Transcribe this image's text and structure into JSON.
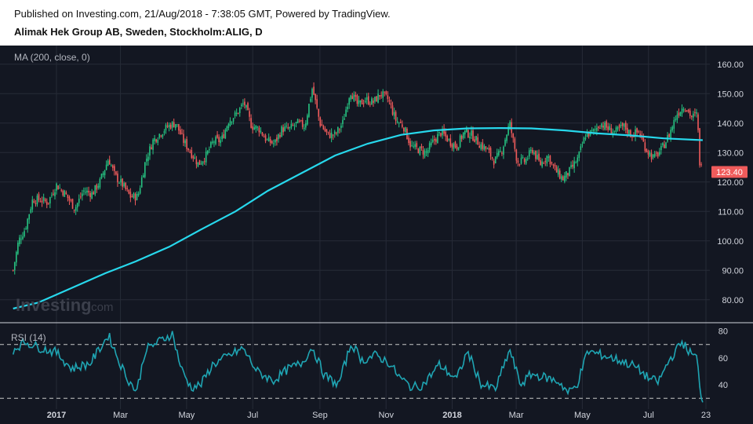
{
  "header": {
    "published": "Published on Investing.com, 21/Aug/2018 - 7:38:05 GMT, Powered by TradingView.",
    "symbol": "Alimak Hek Group AB, Sweden, Stockholm:ALIG, D"
  },
  "watermark": {
    "main": "Investing",
    "suffix": ".com"
  },
  "colors": {
    "background": "#131722",
    "up": "#26c281",
    "down": "#ef5b5b",
    "ma": "#27d8ec",
    "rsi": "#1fa5b3",
    "last_price_label": "#ef5b5b"
  },
  "chart_data": [
    {
      "type": "candlestick",
      "indicator_label": "MA (200, close, 0)",
      "ylim": [
        73,
        165
      ],
      "yticks": [
        "160.00",
        "150.00",
        "140.00",
        "130.00",
        "120.00",
        "110.00",
        "100.00",
        "90.00",
        "80.00"
      ],
      "last_price": 123.4,
      "last_price_label": "123.40",
      "close_path": [
        [
          "2016-11-22",
          90
        ],
        [
          "2016-11-27",
          100
        ],
        [
          "2016-12-03",
          104
        ],
        [
          "2016-12-10",
          114
        ],
        [
          "2016-12-17",
          114
        ],
        [
          "2016-12-24",
          113
        ],
        [
          "2017-01-01",
          119
        ],
        [
          "2017-01-09",
          116
        ],
        [
          "2017-01-18",
          111
        ],
        [
          "2017-01-26",
          117
        ],
        [
          "2017-02-03",
          116
        ],
        [
          "2017-02-10",
          120
        ],
        [
          "2017-02-18",
          128
        ],
        [
          "2017-02-24",
          122
        ],
        [
          "2017-03-03",
          119
        ],
        [
          "2017-03-10",
          115
        ],
        [
          "2017-03-17",
          115
        ],
        [
          "2017-03-24",
          127
        ],
        [
          "2017-03-31",
          134
        ],
        [
          "2017-04-08",
          137
        ],
        [
          "2017-04-14",
          139
        ],
        [
          "2017-04-21",
          140
        ],
        [
          "2017-04-28",
          134
        ],
        [
          "2017-05-05",
          130
        ],
        [
          "2017-05-12",
          126
        ],
        [
          "2017-05-19",
          129
        ],
        [
          "2017-05-26",
          134
        ],
        [
          "2017-06-02",
          134
        ],
        [
          "2017-06-09",
          141
        ],
        [
          "2017-06-16",
          143
        ],
        [
          "2017-06-23",
          147
        ],
        [
          "2017-06-30",
          139
        ],
        [
          "2017-07-07",
          138
        ],
        [
          "2017-07-14",
          134
        ],
        [
          "2017-07-21",
          133
        ],
        [
          "2017-07-28",
          138
        ],
        [
          "2017-08-04",
          138
        ],
        [
          "2017-08-11",
          140
        ],
        [
          "2017-08-18",
          139
        ],
        [
          "2017-08-25",
          152
        ],
        [
          "2017-09-01",
          140
        ],
        [
          "2017-09-08",
          136
        ],
        [
          "2017-09-15",
          136
        ],
        [
          "2017-09-22",
          140
        ],
        [
          "2017-09-29",
          151
        ],
        [
          "2017-10-06",
          146
        ],
        [
          "2017-10-13",
          148
        ],
        [
          "2017-10-20",
          147
        ],
        [
          "2017-10-27",
          150
        ],
        [
          "2017-11-03",
          148
        ],
        [
          "2017-11-10",
          141
        ],
        [
          "2017-11-17",
          139
        ],
        [
          "2017-11-24",
          132
        ],
        [
          "2017-12-01",
          131
        ],
        [
          "2017-12-08",
          130
        ],
        [
          "2017-12-15",
          134
        ],
        [
          "2017-12-22",
          137
        ],
        [
          "2017-12-29",
          134
        ],
        [
          "2018-01-05",
          132
        ],
        [
          "2018-01-12",
          137
        ],
        [
          "2018-01-19",
          136
        ],
        [
          "2018-01-26",
          133
        ],
        [
          "2018-02-02",
          131
        ],
        [
          "2018-02-09",
          127
        ],
        [
          "2018-02-16",
          131
        ],
        [
          "2018-02-23",
          140
        ],
        [
          "2018-03-02",
          127
        ],
        [
          "2018-03-09",
          127
        ],
        [
          "2018-03-16",
          131
        ],
        [
          "2018-03-23",
          126
        ],
        [
          "2018-03-30",
          129
        ],
        [
          "2018-04-06",
          124
        ],
        [
          "2018-04-13",
          121
        ],
        [
          "2018-04-20",
          124
        ],
        [
          "2018-04-27",
          128
        ],
        [
          "2018-05-04",
          136
        ],
        [
          "2018-05-11",
          137
        ],
        [
          "2018-05-18",
          140
        ],
        [
          "2018-05-25",
          138
        ],
        [
          "2018-06-01",
          137
        ],
        [
          "2018-06-08",
          139
        ],
        [
          "2018-06-15",
          136
        ],
        [
          "2018-06-22",
          137
        ],
        [
          "2018-06-29",
          131
        ],
        [
          "2018-07-06",
          128
        ],
        [
          "2018-07-13",
          131
        ],
        [
          "2018-07-20",
          136
        ],
        [
          "2018-07-27",
          143
        ],
        [
          "2018-08-03",
          146
        ],
        [
          "2018-08-10",
          142
        ],
        [
          "2018-08-15",
          143
        ],
        [
          "2018-08-17",
          127
        ],
        [
          "2018-08-20",
          123.4
        ]
      ],
      "ma_path": [
        [
          "2016-11-22",
          77
        ],
        [
          "2016-12-15",
          79
        ],
        [
          "2017-01-15",
          84
        ],
        [
          "2017-02-15",
          89
        ],
        [
          "2017-03-15",
          93
        ],
        [
          "2017-04-15",
          98
        ],
        [
          "2017-05-15",
          104
        ],
        [
          "2017-06-15",
          110
        ],
        [
          "2017-07-15",
          117
        ],
        [
          "2017-08-15",
          123
        ],
        [
          "2017-09-15",
          129
        ],
        [
          "2017-10-15",
          133
        ],
        [
          "2017-11-15",
          136
        ],
        [
          "2017-12-15",
          137.5
        ],
        [
          "2018-01-15",
          138.2
        ],
        [
          "2018-02-15",
          138.3
        ],
        [
          "2018-03-15",
          138.2
        ],
        [
          "2018-04-15",
          137.5
        ],
        [
          "2018-05-15",
          136.5
        ],
        [
          "2018-06-15",
          135.8
        ],
        [
          "2018-07-15",
          134.8
        ],
        [
          "2018-08-20",
          134.2
        ]
      ]
    },
    {
      "type": "line",
      "label": "RSI (14)",
      "ylim": [
        22,
        85
      ],
      "yticks": [
        "80",
        "60",
        "40"
      ],
      "levels": [
        70,
        30
      ],
      "path": [
        [
          "2016-11-22",
          66
        ],
        [
          "2016-12-03",
          72
        ],
        [
          "2016-12-15",
          68
        ],
        [
          "2017-01-01",
          64
        ],
        [
          "2017-01-15",
          52
        ],
        [
          "2017-02-01",
          56
        ],
        [
          "2017-02-18",
          77
        ],
        [
          "2017-02-28",
          57
        ],
        [
          "2017-03-08",
          44
        ],
        [
          "2017-03-16",
          35
        ],
        [
          "2017-03-24",
          66
        ],
        [
          "2017-04-05",
          72
        ],
        [
          "2017-04-18",
          78
        ],
        [
          "2017-04-26",
          52
        ],
        [
          "2017-05-05",
          38
        ],
        [
          "2017-05-14",
          40
        ],
        [
          "2017-05-25",
          55
        ],
        [
          "2017-06-10",
          62
        ],
        [
          "2017-06-22",
          67
        ],
        [
          "2017-07-05",
          50
        ],
        [
          "2017-07-20",
          43
        ],
        [
          "2017-08-03",
          52
        ],
        [
          "2017-08-15",
          56
        ],
        [
          "2017-08-25",
          68
        ],
        [
          "2017-09-05",
          47
        ],
        [
          "2017-09-18",
          40
        ],
        [
          "2017-09-30",
          71
        ],
        [
          "2017-10-10",
          58
        ],
        [
          "2017-10-22",
          62
        ],
        [
          "2017-11-03",
          57
        ],
        [
          "2017-11-14",
          45
        ],
        [
          "2017-11-25",
          38
        ],
        [
          "2017-12-05",
          40
        ],
        [
          "2017-12-20",
          55
        ],
        [
          "2018-01-05",
          44
        ],
        [
          "2018-01-15",
          65
        ],
        [
          "2018-01-28",
          40
        ],
        [
          "2018-02-10",
          37
        ],
        [
          "2018-02-23",
          66
        ],
        [
          "2018-03-05",
          40
        ],
        [
          "2018-03-15",
          48
        ],
        [
          "2018-03-30",
          45
        ],
        [
          "2018-04-10",
          42
        ],
        [
          "2018-04-18",
          34
        ],
        [
          "2018-04-26",
          40
        ],
        [
          "2018-05-06",
          65
        ],
        [
          "2018-05-20",
          62
        ],
        [
          "2018-06-05",
          58
        ],
        [
          "2018-06-18",
          54
        ],
        [
          "2018-07-01",
          45
        ],
        [
          "2018-07-10",
          42
        ],
        [
          "2018-07-20",
          58
        ],
        [
          "2018-08-01",
          72
        ],
        [
          "2018-08-08",
          64
        ],
        [
          "2018-08-15",
          60
        ],
        [
          "2018-08-17",
          38
        ],
        [
          "2018-08-20",
          27
        ]
      ]
    }
  ],
  "x_axis": {
    "ticks": [
      {
        "label": "2017",
        "date": "2017-01-01",
        "bold": true
      },
      {
        "label": "Mar",
        "date": "2017-03-01",
        "bold": false
      },
      {
        "label": "May",
        "date": "2017-05-01",
        "bold": false
      },
      {
        "label": "Jul",
        "date": "2017-07-01",
        "bold": false
      },
      {
        "label": "Sep",
        "date": "2017-09-01",
        "bold": false
      },
      {
        "label": "Nov",
        "date": "2017-11-01",
        "bold": false
      },
      {
        "label": "2018",
        "date": "2018-01-01",
        "bold": true
      },
      {
        "label": "Mar",
        "date": "2018-03-01",
        "bold": false
      },
      {
        "label": "May",
        "date": "2018-05-01",
        "bold": false
      },
      {
        "label": "Jul",
        "date": "2018-07-01",
        "bold": false
      },
      {
        "label": "23",
        "date": "2018-08-23",
        "bold": false
      }
    ]
  }
}
